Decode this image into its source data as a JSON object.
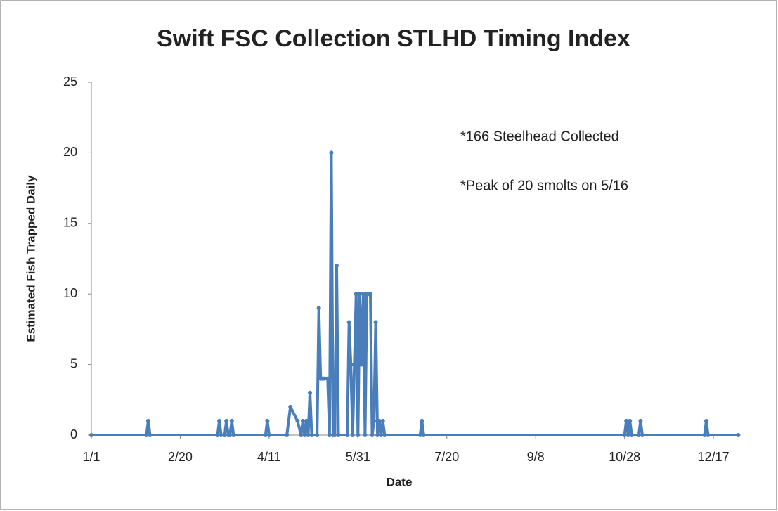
{
  "chart_data": {
    "type": "line",
    "title": "Swift FSC Collection STLHD Timing Index",
    "xlabel": "Date",
    "ylabel": "Estimated Fish Trapped Daily",
    "annotations": [
      "*166 Steelhead Collected",
      "*Peak of 20 smolts on 5/16"
    ],
    "color": "#4a7ebb",
    "x": [
      0,
      31,
      32,
      33,
      71,
      72,
      73,
      75,
      76,
      77,
      78,
      79,
      80,
      98,
      99,
      100,
      110,
      112,
      116,
      118,
      119,
      120,
      121,
      122,
      123,
      124,
      127,
      128,
      129,
      130,
      131,
      133,
      134,
      135,
      136,
      137,
      138,
      139,
      144,
      145,
      146,
      147,
      148,
      149,
      150,
      151,
      152,
      153,
      154,
      155,
      156,
      157,
      158,
      159,
      160,
      161,
      162,
      163,
      164,
      165,
      185,
      186,
      187,
      300,
      301,
      302,
      303,
      304,
      308,
      309,
      310,
      345,
      346,
      347,
      364
    ],
    "values": [
      0,
      0,
      1,
      0,
      0,
      1,
      0,
      0,
      1,
      0,
      0,
      1,
      0,
      0,
      1,
      0,
      0,
      2,
      1,
      0,
      1,
      0,
      1,
      0,
      3,
      0,
      0,
      9,
      4,
      4,
      4,
      4,
      0,
      20,
      0,
      0,
      12,
      0,
      0,
      8,
      5,
      0,
      5,
      10,
      0,
      10,
      5,
      10,
      0,
      10,
      10,
      10,
      0,
      1,
      8,
      0,
      1,
      0,
      1,
      0,
      0,
      1,
      0,
      0,
      1,
      0,
      1,
      0,
      0,
      1,
      0,
      0,
      1,
      0,
      0
    ],
    "xlim": [
      0,
      365
    ],
    "xticks": [
      {
        "value": 0,
        "label": "1/1"
      },
      {
        "value": 50,
        "label": "2/20"
      },
      {
        "value": 100,
        "label": "4/11"
      },
      {
        "value": 150,
        "label": "5/31"
      },
      {
        "value": 200,
        "label": "7/20"
      },
      {
        "value": 250,
        "label": "9/8"
      },
      {
        "value": 300,
        "label": "10/28"
      },
      {
        "value": 350,
        "label": "12/17"
      }
    ],
    "ylim": [
      0,
      25
    ],
    "yticks": [
      0,
      5,
      10,
      15,
      20,
      25
    ],
    "grid": false
  }
}
